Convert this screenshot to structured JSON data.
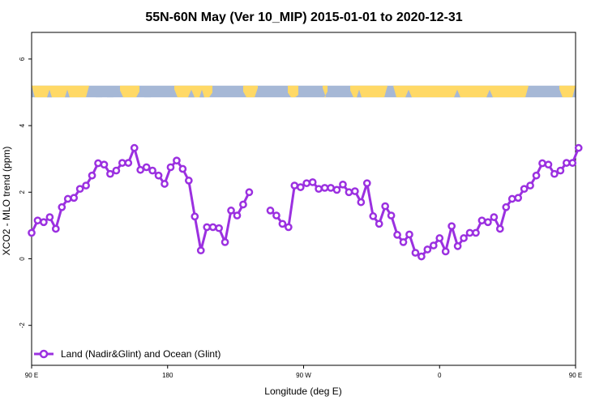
{
  "chart_data": {
    "type": "line",
    "title": "55N-60N May (Ver 10_MIP)   2015-01-01 to 2020-12-31",
    "xlabel": "Longitude (deg E)",
    "ylabel": "XCO2 - MLO trend (ppm)",
    "xlim": [
      90,
      450
    ],
    "ylim": [
      -3.2,
      6.8
    ],
    "x_ticks": [
      {
        "value": 90,
        "label": "90 E"
      },
      {
        "value": 180,
        "label": "180"
      },
      {
        "value": 270,
        "label": "90 W"
      },
      {
        "value": 360,
        "label": "0"
      },
      {
        "value": 450,
        "label": "90 E"
      },
      {
        "value": 540,
        "label": "180"
      }
    ],
    "y_ticks": [
      {
        "value": -2,
        "label": "-2"
      },
      {
        "value": 0,
        "label": "0"
      },
      {
        "value": 2,
        "label": "2"
      },
      {
        "value": 4,
        "label": "4"
      },
      {
        "value": 6,
        "label": "6"
      }
    ],
    "land_strip": {
      "y_range": [
        4.85,
        5.2
      ],
      "land_color": "#ffd966",
      "ocean_color": "#a6b8d6"
    },
    "series": [
      {
        "name": "Land (Nadir&Glint) and Ocean (Glint)",
        "color": "#9b30e0",
        "points": [
          [
            90,
            0.78
          ],
          [
            94,
            1.15
          ],
          [
            98,
            1.1
          ],
          [
            102,
            1.25
          ],
          [
            106,
            0.9
          ],
          [
            110,
            1.55
          ],
          [
            114,
            1.8
          ],
          [
            118,
            1.83
          ],
          [
            122,
            2.1
          ],
          [
            126,
            2.2
          ],
          [
            130,
            2.5
          ],
          [
            134,
            2.87
          ],
          [
            138,
            2.83
          ],
          [
            142,
            2.55
          ],
          [
            146,
            2.65
          ],
          [
            150,
            2.88
          ],
          [
            154,
            2.88
          ],
          [
            158,
            3.33
          ],
          [
            162,
            2.67
          ],
          [
            166,
            2.75
          ],
          [
            170,
            2.65
          ],
          [
            174,
            2.5
          ],
          [
            178,
            2.25
          ],
          [
            182,
            2.75
          ],
          [
            186,
            2.95
          ],
          [
            190,
            2.7
          ],
          [
            194,
            2.35
          ],
          [
            198,
            1.27
          ],
          [
            202,
            0.25
          ],
          [
            206,
            0.95
          ],
          [
            210,
            0.95
          ],
          [
            214,
            0.92
          ],
          [
            218,
            0.5
          ],
          [
            222,
            1.45
          ],
          [
            226,
            1.3
          ],
          [
            230,
            1.63
          ],
          [
            234,
            2.0
          ],
          null,
          [
            248,
            1.45
          ],
          [
            252,
            1.3
          ],
          [
            256,
            1.05
          ],
          [
            260,
            0.95
          ],
          [
            264,
            2.2
          ],
          [
            268,
            2.15
          ],
          [
            272,
            2.27
          ],
          [
            276,
            2.3
          ],
          [
            280,
            2.1
          ],
          [
            284,
            2.13
          ],
          [
            288,
            2.13
          ],
          [
            292,
            2.07
          ],
          [
            296,
            2.23
          ],
          [
            300,
            2.0
          ],
          [
            304,
            2.03
          ],
          [
            308,
            1.7
          ],
          [
            312,
            2.27
          ],
          [
            316,
            1.28
          ],
          [
            320,
            1.05
          ],
          [
            324,
            1.58
          ],
          [
            328,
            1.3
          ],
          [
            332,
            0.72
          ],
          [
            336,
            0.5
          ],
          [
            340,
            0.73
          ],
          [
            344,
            0.18
          ],
          [
            348,
            0.07
          ],
          [
            352,
            0.28
          ],
          [
            356,
            0.4
          ],
          [
            360,
            0.62
          ],
          [
            364,
            0.22
          ],
          [
            368,
            0.98
          ],
          [
            372,
            0.38
          ],
          [
            376,
            0.62
          ],
          [
            380,
            0.78
          ],
          [
            384,
            0.78
          ],
          [
            388,
            1.15
          ],
          [
            392,
            1.1
          ],
          [
            396,
            1.25
          ],
          [
            400,
            0.9
          ],
          [
            404,
            1.55
          ],
          [
            408,
            1.8
          ],
          [
            412,
            1.83
          ],
          [
            416,
            2.1
          ],
          [
            420,
            2.2
          ],
          [
            424,
            2.5
          ],
          [
            428,
            2.87
          ],
          [
            432,
            2.83
          ],
          [
            436,
            2.55
          ],
          [
            440,
            2.65
          ],
          [
            444,
            2.88
          ],
          [
            448,
            2.88
          ],
          [
            452,
            3.33
          ]
        ]
      }
    ],
    "legend": {
      "position": "bottom-left"
    },
    "grid": false
  }
}
